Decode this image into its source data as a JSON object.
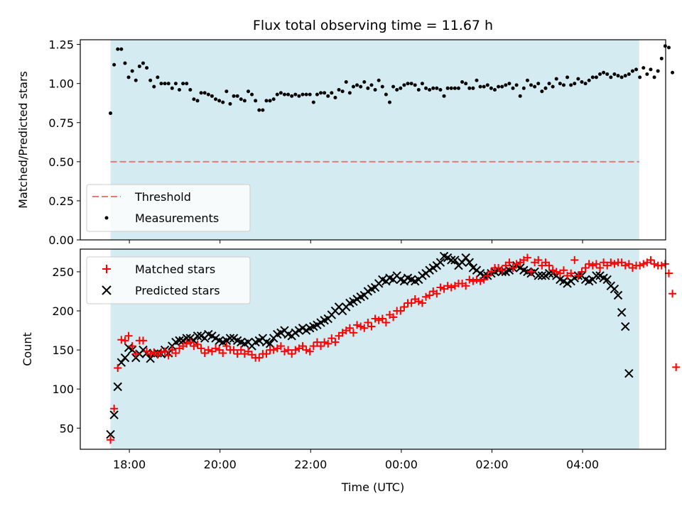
{
  "chart_data": [
    {
      "type": "scatter",
      "title": "Flux total observing time = 11.67 h",
      "xlabel": "",
      "ylabel": "Matched/Predicted stars",
      "ylim": [
        0,
        1.28
      ],
      "yticks": [
        "0.00",
        "0.25",
        "0.50",
        "0.75",
        "1.00",
        "1.25"
      ],
      "ytick_values": [
        0,
        0.25,
        0.5,
        0.75,
        1.0,
        1.25
      ],
      "threshold": 0.5,
      "shaded_span": [
        "17:35",
        "05:15"
      ],
      "colors": {
        "shade": "#d4ebf1",
        "threshold": "#e87a7a",
        "points": "#000000"
      },
      "legend": {
        "placement": "lower-left",
        "entries": [
          "Threshold",
          "Measurements"
        ]
      },
      "series": [
        {
          "name": "Measurements",
          "x_start": "17:35",
          "x_step_min": 4.8,
          "y": [
            0.81,
            1.12,
            1.22,
            1.22,
            1.13,
            1.04,
            1.08,
            1.02,
            1.11,
            1.13,
            1.1,
            1.02,
            0.98,
            1.04,
            1.0,
            1.0,
            1.0,
            0.97,
            1.0,
            0.96,
            1.0,
            1.0,
            0.96,
            0.9,
            0.89,
            0.94,
            0.94,
            0.93,
            0.92,
            0.9,
            0.89,
            0.88,
            0.95,
            0.87,
            0.92,
            0.92,
            0.9,
            0.89,
            0.95,
            0.93,
            0.89,
            0.83,
            0.83,
            0.89,
            0.89,
            0.9,
            0.93,
            0.94,
            0.93,
            0.93,
            0.92,
            0.93,
            0.92,
            0.93,
            0.93,
            0.93,
            0.88,
            0.93,
            0.94,
            0.94,
            0.92,
            0.94,
            0.91,
            0.96,
            0.95,
            1.01,
            0.94,
            0.98,
            0.99,
            0.98,
            1.01,
            0.97,
            0.99,
            0.96,
            1.02,
            0.98,
            0.93,
            0.88,
            0.98,
            0.96,
            0.97,
            0.99,
            1.0,
            1.0,
            0.99,
            0.96,
            1.0,
            0.97,
            0.96,
            0.97,
            0.97,
            0.96,
            0.92,
            0.97,
            0.97,
            0.97,
            0.97,
            1.01,
            1.0,
            0.97,
            0.97,
            1.02,
            0.98,
            0.98,
            0.99,
            0.97,
            0.96,
            0.98,
            0.98,
            0.99,
            1.0,
            0.97,
            0.99,
            0.92,
            0.97,
            1.02,
            0.99,
            0.98,
            1.0,
            0.95,
            0.97,
            1.0,
            0.98,
            1.03,
            1.0,
            0.99,
            1.04,
            0.99,
            1.0,
            1.03,
            1.01,
            1.0,
            1.02,
            1.04,
            1.04,
            1.06,
            1.07,
            1.06,
            1.04,
            1.06,
            1.05,
            1.04,
            1.05,
            1.06,
            1.08,
            1.09,
            1.04,
            1.1,
            1.06,
            1.09,
            1.04,
            1.08,
            1.16,
            1.24,
            1.23,
            1.07
          ]
        }
      ]
    },
    {
      "type": "scatter",
      "title": "",
      "xlabel": "Time (UTC)",
      "ylabel": "Count",
      "ylim": [
        23,
        279
      ],
      "yticks": [
        "50",
        "100",
        "150",
        "200",
        "250"
      ],
      "ytick_values": [
        50,
        100,
        150,
        200,
        250
      ],
      "xticks": [
        "18:00",
        "20:00",
        "22:00",
        "00:00",
        "02:00",
        "04:00"
      ],
      "xlim": [
        "16:55",
        "05:50"
      ],
      "shaded_span": [
        "17:35",
        "05:15"
      ],
      "colors": {
        "shade": "#d4ebf1",
        "matched": "#ff0000",
        "predicted": "#000000"
      },
      "legend": {
        "placement": "upper-left",
        "entries": [
          "Matched stars",
          "Predicted stars"
        ]
      },
      "series": [
        {
          "name": "Matched stars",
          "x_start": "17:35",
          "x_step_min": 4.8,
          "y": [
            35,
            75,
            127,
            163,
            162,
            168,
            155,
            145,
            162,
            162,
            148,
            145,
            147,
            144,
            147,
            148,
            143,
            150,
            146,
            152,
            155,
            158,
            160,
            155,
            157,
            152,
            146,
            150,
            148,
            152,
            150,
            146,
            155,
            150,
            150,
            145,
            150,
            145,
            148,
            144,
            140,
            140,
            145,
            145,
            150,
            150,
            152,
            155,
            148,
            150,
            145,
            150,
            152,
            155,
            150,
            148,
            155,
            160,
            155,
            160,
            158,
            165,
            160,
            168,
            172,
            175,
            178,
            172,
            182,
            180,
            178,
            185,
            180,
            190,
            188,
            190,
            185,
            195,
            192,
            200,
            200,
            205,
            210,
            210,
            215,
            212,
            210,
            218,
            220,
            225,
            222,
            230,
            228,
            232,
            230,
            232,
            235,
            235,
            232,
            240,
            238,
            240,
            238,
            240,
            245,
            250,
            255,
            255,
            252,
            258,
            262,
            255,
            260,
            262,
            265,
            268,
            250,
            262,
            265,
            258,
            262,
            258,
            252,
            250,
            248,
            252,
            245,
            248,
            265,
            245,
            250,
            255,
            260,
            258,
            260,
            255,
            262,
            258,
            262,
            260,
            262,
            262,
            258,
            260,
            255,
            258,
            258,
            260,
            262,
            265,
            260,
            258,
            258,
            260,
            248,
            222,
            128
          ]
        },
        {
          "name": "Predicted stars",
          "x_start": "17:35",
          "x_step_min": 4.8,
          "y": [
            42,
            67,
            103,
            134,
            140,
            153,
            150,
            140,
            145,
            150,
            146,
            139,
            145,
            146,
            145,
            150,
            146,
            155,
            160,
            162,
            162,
            165,
            165,
            162,
            168,
            168,
            165,
            170,
            168,
            165,
            162,
            160,
            162,
            165,
            165,
            162,
            160,
            158,
            160,
            155,
            160,
            162,
            165,
            160,
            158,
            165,
            170,
            172,
            175,
            170,
            168,
            172,
            175,
            178,
            175,
            178,
            180,
            182,
            185,
            188,
            190,
            195,
            200,
            205,
            200,
            205,
            210,
            212,
            215,
            218,
            220,
            225,
            228,
            230,
            235,
            240,
            238,
            242,
            240,
            245,
            240,
            238,
            242,
            240,
            238,
            240,
            245,
            248,
            252,
            255,
            258,
            262,
            270,
            268,
            265,
            265,
            258,
            262,
            268,
            262,
            255,
            252,
            248,
            245,
            245,
            248,
            250,
            252,
            250,
            250,
            252,
            255,
            258,
            255,
            252,
            250,
            248,
            250,
            245,
            245,
            245,
            248,
            248,
            245,
            240,
            238,
            235,
            238,
            242,
            245,
            245,
            240,
            238,
            240,
            245,
            245,
            242,
            240,
            232,
            228,
            220,
            198,
            180,
            120
          ]
        }
      ]
    }
  ]
}
